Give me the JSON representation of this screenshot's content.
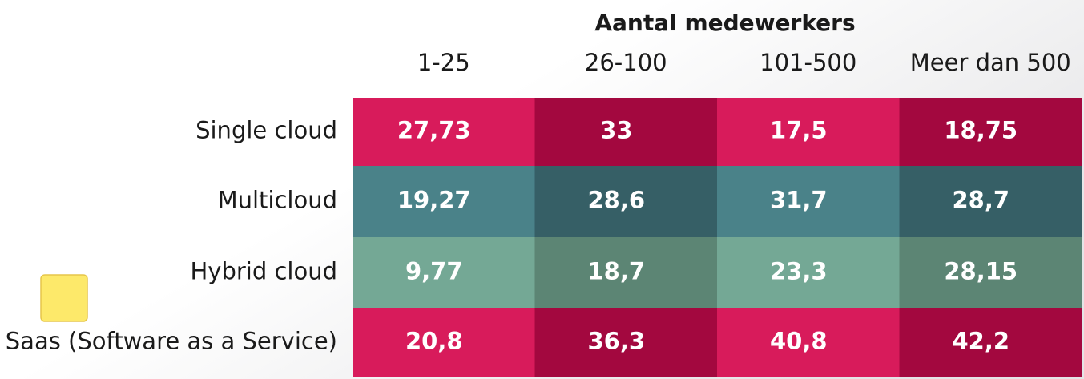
{
  "header": {
    "title": "Aantal medewerkers"
  },
  "table": {
    "columns": [
      "1-25",
      "26-100",
      "101-500",
      "Meer dan 500"
    ],
    "rows": [
      {
        "label": "Single cloud",
        "cells": [
          "27,73",
          "33",
          "17,5",
          "18,75"
        ]
      },
      {
        "label": "Multicloud",
        "cells": [
          "19,27",
          "28,6",
          "31,7",
          "28,7"
        ]
      },
      {
        "label": "Hybrid cloud",
        "cells": [
          "9,77",
          "18,7",
          "23,3",
          "28,15"
        ]
      },
      {
        "label": "Saas (Software as a Service)",
        "cells": [
          "20,8",
          "36,3",
          "40,8",
          "42,2"
        ]
      }
    ]
  }
}
